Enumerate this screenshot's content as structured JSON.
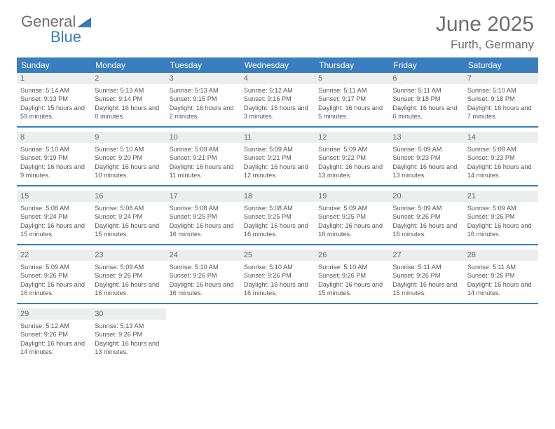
{
  "logo": {
    "text1": "General",
    "text2": "Blue"
  },
  "title": {
    "month": "June 2025",
    "location": "Furth, Germany"
  },
  "colors": {
    "accent": "#3a7ebf",
    "grayBg": "#eceded",
    "grayText": "#6d6d6d"
  },
  "dayNames": [
    "Sunday",
    "Monday",
    "Tuesday",
    "Wednesday",
    "Thursday",
    "Friday",
    "Saturday"
  ],
  "weeks": [
    [
      {
        "n": "1",
        "sr": "5:14 AM",
        "ss": "9:13 PM",
        "dl": "15 hours and 59 minutes."
      },
      {
        "n": "2",
        "sr": "5:13 AM",
        "ss": "9:14 PM",
        "dl": "16 hours and 0 minutes."
      },
      {
        "n": "3",
        "sr": "5:13 AM",
        "ss": "9:15 PM",
        "dl": "16 hours and 2 minutes."
      },
      {
        "n": "4",
        "sr": "5:12 AM",
        "ss": "9:16 PM",
        "dl": "16 hours and 3 minutes."
      },
      {
        "n": "5",
        "sr": "5:11 AM",
        "ss": "9:17 PM",
        "dl": "16 hours and 5 minutes."
      },
      {
        "n": "6",
        "sr": "5:11 AM",
        "ss": "9:18 PM",
        "dl": "16 hours and 6 minutes."
      },
      {
        "n": "7",
        "sr": "5:10 AM",
        "ss": "9:18 PM",
        "dl": "16 hours and 7 minutes."
      }
    ],
    [
      {
        "n": "8",
        "sr": "5:10 AM",
        "ss": "9:19 PM",
        "dl": "16 hours and 9 minutes."
      },
      {
        "n": "9",
        "sr": "5:10 AM",
        "ss": "9:20 PM",
        "dl": "16 hours and 10 minutes."
      },
      {
        "n": "10",
        "sr": "5:09 AM",
        "ss": "9:21 PM",
        "dl": "16 hours and 11 minutes."
      },
      {
        "n": "11",
        "sr": "5:09 AM",
        "ss": "9:21 PM",
        "dl": "16 hours and 12 minutes."
      },
      {
        "n": "12",
        "sr": "5:09 AM",
        "ss": "9:22 PM",
        "dl": "16 hours and 13 minutes."
      },
      {
        "n": "13",
        "sr": "5:09 AM",
        "ss": "9:23 PM",
        "dl": "16 hours and 13 minutes."
      },
      {
        "n": "14",
        "sr": "5:09 AM",
        "ss": "9:23 PM",
        "dl": "16 hours and 14 minutes."
      }
    ],
    [
      {
        "n": "15",
        "sr": "5:08 AM",
        "ss": "9:24 PM",
        "dl": "16 hours and 15 minutes."
      },
      {
        "n": "16",
        "sr": "5:08 AM",
        "ss": "9:24 PM",
        "dl": "16 hours and 15 minutes."
      },
      {
        "n": "17",
        "sr": "5:08 AM",
        "ss": "9:25 PM",
        "dl": "16 hours and 16 minutes."
      },
      {
        "n": "18",
        "sr": "5:08 AM",
        "ss": "9:25 PM",
        "dl": "16 hours and 16 minutes."
      },
      {
        "n": "19",
        "sr": "5:09 AM",
        "ss": "9:25 PM",
        "dl": "16 hours and 16 minutes."
      },
      {
        "n": "20",
        "sr": "5:09 AM",
        "ss": "9:26 PM",
        "dl": "16 hours and 16 minutes."
      },
      {
        "n": "21",
        "sr": "5:09 AM",
        "ss": "9:26 PM",
        "dl": "16 hours and 16 minutes."
      }
    ],
    [
      {
        "n": "22",
        "sr": "5:09 AM",
        "ss": "9:26 PM",
        "dl": "16 hours and 16 minutes."
      },
      {
        "n": "23",
        "sr": "5:09 AM",
        "ss": "9:26 PM",
        "dl": "16 hours and 16 minutes."
      },
      {
        "n": "24",
        "sr": "5:10 AM",
        "ss": "9:26 PM",
        "dl": "16 hours and 16 minutes."
      },
      {
        "n": "25",
        "sr": "5:10 AM",
        "ss": "9:26 PM",
        "dl": "16 hours and 16 minutes."
      },
      {
        "n": "26",
        "sr": "5:10 AM",
        "ss": "9:26 PM",
        "dl": "16 hours and 15 minutes."
      },
      {
        "n": "27",
        "sr": "5:11 AM",
        "ss": "9:26 PM",
        "dl": "16 hours and 15 minutes."
      },
      {
        "n": "28",
        "sr": "5:11 AM",
        "ss": "9:26 PM",
        "dl": "16 hours and 14 minutes."
      }
    ],
    [
      {
        "n": "29",
        "sr": "5:12 AM",
        "ss": "9:26 PM",
        "dl": "16 hours and 14 minutes."
      },
      {
        "n": "30",
        "sr": "5:13 AM",
        "ss": "9:26 PM",
        "dl": "16 hours and 13 minutes."
      },
      null,
      null,
      null,
      null,
      null
    ]
  ],
  "labels": {
    "sunrise": "Sunrise:",
    "sunset": "Sunset:",
    "daylight": "Daylight:"
  }
}
